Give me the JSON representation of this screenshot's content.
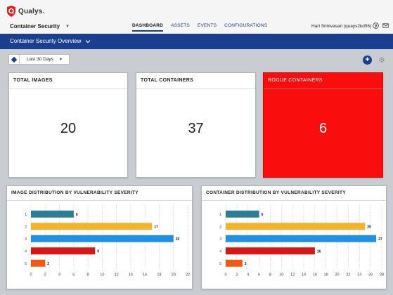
{
  "app": {
    "logo_text": "Qualys.",
    "module": "Container Security"
  },
  "nav": {
    "items": [
      {
        "label": "DASHBOARD",
        "active": true
      },
      {
        "label": "ASSETS",
        "active": false
      },
      {
        "label": "EVENTS",
        "active": false
      },
      {
        "label": "CONFIGURATIONS",
        "active": false
      }
    ]
  },
  "user": {
    "name": "Hari Srinivasan (quays2kd56)"
  },
  "subheader": {
    "title": "Container Security Overview"
  },
  "filter": {
    "selected": "Last 30 Days"
  },
  "cards": {
    "total_images": {
      "title": "TOTAL IMAGES",
      "value": "20"
    },
    "total_containers": {
      "title": "TOTAL CONTAINERS",
      "value": "37"
    },
    "rogue_containers": {
      "title": "ROGUE CONTAINERS",
      "value": "6"
    }
  },
  "colors": {
    "brand_blue": "#1a3f8f",
    "rogue_red": "#f90d0d",
    "sev1": "#2e7d96",
    "sev2": "#f2b42a",
    "sev3": "#1e90e6",
    "sev4": "#d41717",
    "sev5": "#f05a14"
  },
  "chart_data": [
    {
      "type": "bar",
      "orientation": "horizontal",
      "title": "IMAGE DISTRIBUTION BY VULNERABILITY SEVERITY",
      "categories": [
        "1",
        "2",
        "3",
        "4",
        "5"
      ],
      "values": [
        6,
        17,
        20,
        9,
        2
      ],
      "xlim": [
        0,
        22
      ],
      "xticks": [
        "0",
        "2",
        "4",
        "6",
        "8",
        "10",
        "12",
        "14",
        "16",
        "18",
        "20",
        "22"
      ],
      "grid": true
    },
    {
      "type": "bar",
      "orientation": "horizontal",
      "title": "CONTAINER DISTRIBUTION BY VULNERABILITY SEVERITY",
      "categories": [
        "1",
        "2",
        "3",
        "4",
        "5"
      ],
      "values": [
        6,
        25,
        27,
        16,
        3
      ],
      "xlim": [
        0,
        28
      ],
      "xticks": [
        "0",
        "2",
        "4",
        "6",
        "8",
        "10",
        "12",
        "14",
        "16",
        "18",
        "20",
        "22",
        "24",
        "26",
        "28"
      ],
      "grid": true
    }
  ]
}
